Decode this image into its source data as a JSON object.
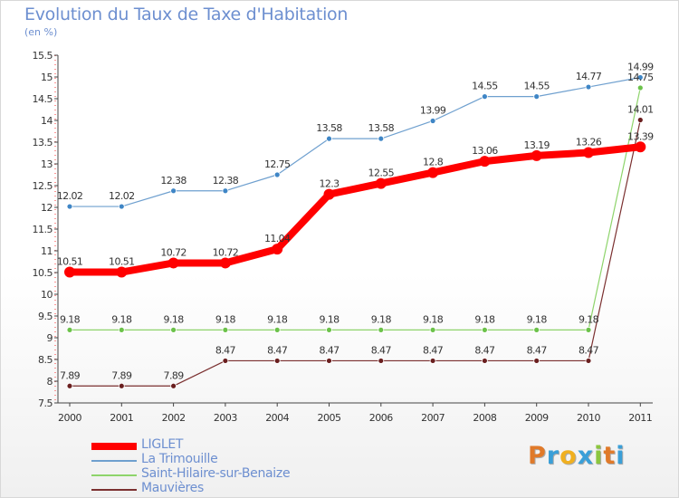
{
  "title": "Evolution du Taux de Taxe d'Habitation",
  "subtitle": "(en %)",
  "logo": {
    "text": "Proxiti",
    "letters": [
      {
        "ch": "P",
        "color": "#e07a2a"
      },
      {
        "ch": "r",
        "color": "#3a9fd8"
      },
      {
        "ch": "o",
        "color": "#f0b020"
      },
      {
        "ch": "x",
        "color": "#3a9fd8"
      },
      {
        "ch": "i",
        "color": "#8cc63f"
      },
      {
        "ch": "t",
        "color": "#e07a2a"
      },
      {
        "ch": "i",
        "color": "#3a9fd8"
      }
    ]
  },
  "chart_data": {
    "type": "line",
    "title": "Evolution du Taux de Taxe d'Habitation",
    "ylabel": "(en %)",
    "xlabel": "",
    "categories": [
      "2000",
      "2001",
      "2002",
      "2003",
      "2004",
      "2005",
      "2006",
      "2007",
      "2008",
      "2009",
      "2010",
      "2011"
    ],
    "ylim": [
      7.5,
      15.5
    ],
    "yticks": [
      7.5,
      8,
      8.5,
      9,
      9.5,
      10,
      10.5,
      11,
      11.5,
      12,
      12.5,
      13,
      13.5,
      14,
      14.5,
      15,
      15.5
    ],
    "ytick_labels": [
      "7.5",
      "8",
      "8.5",
      "9",
      "9.5",
      "10",
      "10.5",
      "11",
      "11.5",
      "12",
      "12.5",
      "13",
      "13.5",
      "14",
      "14.5",
      "15",
      "15.5"
    ],
    "grid": false,
    "legend_position": "bottom-left",
    "series": [
      {
        "name": "La Trimouille",
        "color": "#6fa0cf",
        "marker_color": "#3f86c6",
        "values": [
          12.02,
          12.02,
          12.38,
          12.38,
          12.75,
          13.58,
          13.58,
          13.99,
          14.55,
          14.55,
          14.77,
          14.99
        ],
        "labels": [
          "12.02",
          "12.02",
          "12.38",
          "12.38",
          "12.75",
          "13.58",
          "13.58",
          "13.99",
          "14.55",
          "14.55",
          "14.77",
          "14.99"
        ]
      },
      {
        "name": "Saint-Hilaire-sur-Benaize",
        "color": "#8ed46b",
        "marker_color": "#6cc24a",
        "values": [
          9.18,
          9.18,
          9.18,
          9.18,
          9.18,
          9.18,
          9.18,
          9.18,
          9.18,
          9.18,
          9.18,
          14.75
        ],
        "labels": [
          "9.18",
          "9.18",
          "9.18",
          "9.18",
          "9.18",
          "9.18",
          "9.18",
          "9.18",
          "9.18",
          "9.18",
          "9.18",
          "14.75"
        ]
      },
      {
        "name": "Mauvières",
        "color": "#7b3030",
        "marker_color": "#6a1f1f",
        "values": [
          7.89,
          7.89,
          7.89,
          8.47,
          8.47,
          8.47,
          8.47,
          8.47,
          8.47,
          8.47,
          8.47,
          14.01
        ],
        "labels": [
          "7.89",
          "7.89",
          "7.89",
          "8.47",
          "8.47",
          "8.47",
          "8.47",
          "8.47",
          "8.47",
          "8.47",
          "8.47",
          "14.01"
        ]
      },
      {
        "name": "LIGLET",
        "color": "#ff0000",
        "marker_color": "#ff0000",
        "values": [
          10.51,
          10.51,
          10.72,
          10.72,
          11.04,
          12.3,
          12.55,
          12.8,
          13.06,
          13.19,
          13.26,
          13.39
        ],
        "labels": [
          "10.51",
          "10.51",
          "10.72",
          "10.72",
          "11.04",
          "12.3",
          "12.55",
          "12.8",
          "13.06",
          "13.19",
          "13.26",
          "13.39"
        ]
      }
    ],
    "legend_order": [
      "LIGLET",
      "La Trimouille",
      "Saint-Hilaire-sur-Benaize",
      "Mauvières"
    ]
  }
}
